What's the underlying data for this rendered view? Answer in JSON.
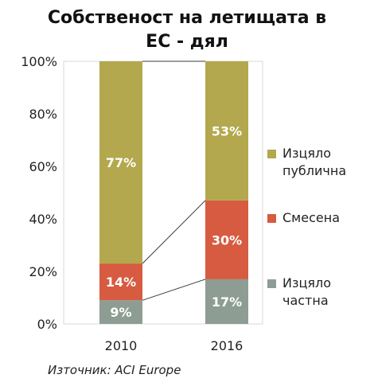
{
  "chart_data": {
    "type": "bar",
    "stacked": true,
    "title_lines": [
      "Собственост на летищата в",
      "ЕС - дял"
    ],
    "categories": [
      "2010",
      "2016"
    ],
    "series": [
      {
        "name": "Изцяло частна",
        "color": "#8e9d94",
        "values": [
          9,
          17
        ],
        "labels": [
          "9%",
          "17%"
        ]
      },
      {
        "name": "Смесена",
        "color": "#d65b40",
        "values": [
          14,
          30
        ],
        "labels": [
          "14%",
          "30%"
        ]
      },
      {
        "name": "Изцяло публична",
        "color": "#b3a84d",
        "values": [
          77,
          53
        ],
        "labels": [
          "77%",
          "53%"
        ]
      }
    ],
    "ylim": [
      0,
      100
    ],
    "yticks": [
      "0%",
      "20%",
      "40%",
      "60%",
      "80%",
      "100%"
    ],
    "yaxis_unit": "%",
    "series_lines": true,
    "legend": {
      "placement": "right",
      "items": [
        {
          "label": "Изцяло публична",
          "color": "#b3a84d"
        },
        {
          "label": "Смесена",
          "color": "#d65b40"
        },
        {
          "label": "Изцяло частна",
          "color": "#8e9d94"
        }
      ]
    },
    "source": "Източник: ACI Europe"
  }
}
